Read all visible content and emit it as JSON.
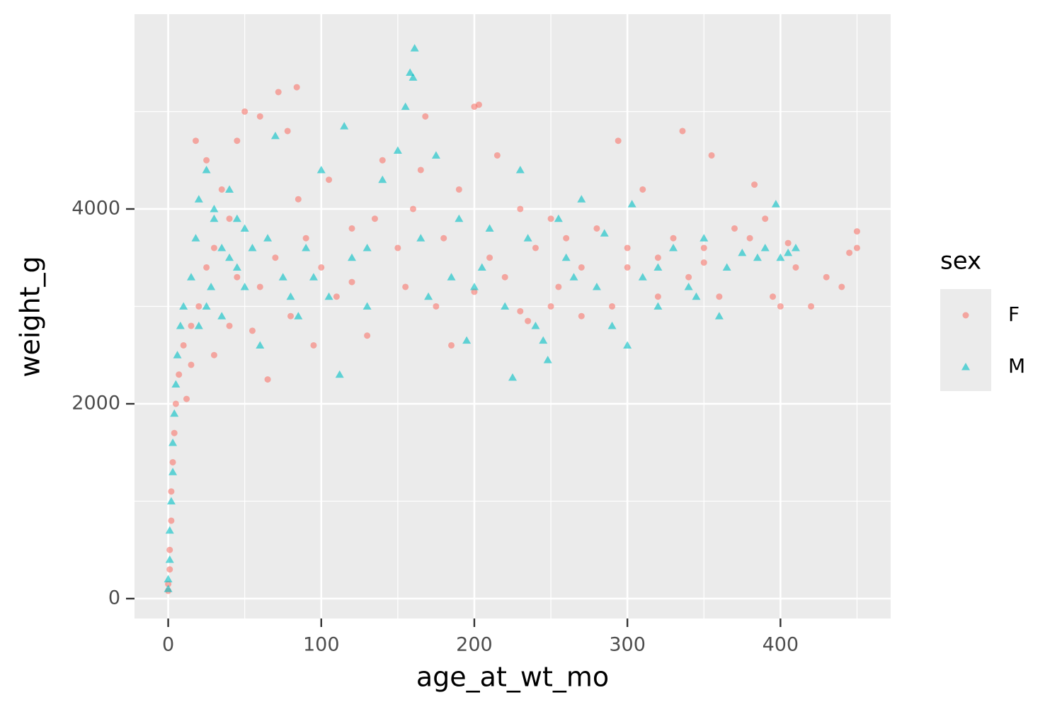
{
  "chart_data": {
    "type": "scatter",
    "x_label": "age_at_wt_mo",
    "y_label": "weight_g",
    "legend_title": "sex",
    "xlim": [
      -22,
      472
    ],
    "ylim": [
      -204,
      6000
    ],
    "xticks": [
      0,
      100,
      200,
      300,
      400
    ],
    "yticks": [
      0,
      2000,
      4000
    ],
    "xminor": [
      50,
      150,
      250,
      350,
      450
    ],
    "yminor": [
      1000,
      3000,
      5000
    ],
    "grid": true,
    "legend": "right",
    "opacity": 0.6,
    "series": [
      {
        "name": "F",
        "color": "#F8766D",
        "marker": "circle",
        "x": [
          0,
          0,
          1,
          1,
          2,
          2,
          3,
          4,
          5,
          7,
          10,
          12,
          15,
          20,
          25,
          30,
          35,
          40,
          45,
          50,
          55,
          60,
          65,
          72,
          84,
          78,
          90,
          95,
          100,
          105,
          110,
          120,
          130,
          140,
          150,
          155,
          160,
          165,
          168,
          175,
          180,
          185,
          190,
          200,
          203,
          210,
          215,
          220,
          230,
          235,
          240,
          250,
          255,
          260,
          270,
          280,
          290,
          294,
          300,
          310,
          320,
          330,
          336,
          340,
          350,
          355,
          360,
          370,
          380,
          383,
          390,
          395,
          400,
          405,
          410,
          420,
          430,
          440,
          445,
          450,
          450,
          30,
          40,
          60,
          70,
          80,
          120,
          200,
          250,
          320,
          270,
          15,
          18,
          25,
          45,
          85,
          135,
          230,
          300,
          350
        ],
        "values": [
          80,
          150,
          300,
          500,
          800,
          1100,
          1400,
          1700,
          2000,
          2300,
          2600,
          2050,
          2800,
          3000,
          3400,
          3600,
          4200,
          3900,
          4700,
          5000,
          2750,
          4950,
          2250,
          5200,
          5250,
          4800,
          3700,
          2600,
          3400,
          4300,
          3100,
          3800,
          2700,
          4500,
          3600,
          3200,
          4000,
          4400,
          4950,
          3000,
          3700,
          2600,
          4200,
          5050,
          5070,
          3500,
          4550,
          3300,
          4000,
          2850,
          3600,
          3900,
          3200,
          3700,
          3400,
          3800,
          3000,
          4700,
          3600,
          4200,
          3500,
          3700,
          4800,
          3300,
          3600,
          4550,
          3100,
          3800,
          3700,
          4250,
          3900,
          3100,
          3000,
          3650,
          3400,
          3000,
          3300,
          3200,
          3550,
          3600,
          3770,
          2500,
          2800,
          3200,
          3500,
          2900,
          3250,
          3150,
          3000,
          3100,
          2900,
          2400,
          4700,
          4500,
          3300,
          4100,
          3900,
          2950,
          3400,
          3450
        ]
      },
      {
        "name": "M",
        "color": "#00BFC4",
        "marker": "triangle",
        "x": [
          0,
          0,
          1,
          1,
          2,
          3,
          3,
          4,
          5,
          6,
          8,
          10,
          15,
          18,
          20,
          25,
          30,
          35,
          40,
          45,
          50,
          55,
          60,
          70,
          75,
          85,
          90,
          100,
          105,
          112,
          115,
          120,
          130,
          140,
          150,
          155,
          158,
          160,
          161,
          165,
          175,
          185,
          190,
          195,
          200,
          210,
          220,
          225,
          230,
          240,
          245,
          248,
          255,
          260,
          270,
          280,
          290,
          300,
          303,
          310,
          320,
          330,
          340,
          350,
          360,
          365,
          375,
          385,
          390,
          397,
          400,
          405,
          410,
          20,
          28,
          35,
          45,
          65,
          80,
          95,
          130,
          170,
          205,
          235,
          265,
          285,
          320,
          345,
          30,
          50,
          40,
          25
        ],
        "values": [
          100,
          200,
          400,
          700,
          1000,
          1300,
          1600,
          1900,
          2200,
          2500,
          2800,
          3000,
          3300,
          3700,
          4100,
          4400,
          3900,
          3600,
          4200,
          3400,
          3800,
          3600,
          2600,
          4750,
          3300,
          2900,
          3600,
          4400,
          3100,
          2300,
          4850,
          3500,
          3000,
          4300,
          4600,
          5050,
          5400,
          5350,
          5650,
          3700,
          4550,
          3300,
          3900,
          2650,
          3200,
          3800,
          3000,
          2270,
          4400,
          2800,
          2650,
          2450,
          3900,
          3500,
          4100,
          3200,
          2800,
          2600,
          4050,
          3300,
          3000,
          3600,
          3200,
          3700,
          2900,
          3400,
          3550,
          3500,
          3600,
          4050,
          3500,
          3550,
          3600,
          2800,
          3200,
          2900,
          3900,
          3700,
          3100,
          3300,
          3600,
          3100,
          3400,
          3700,
          3300,
          3750,
          3400,
          3100,
          4000,
          3200,
          3500,
          3000
        ]
      }
    ]
  }
}
